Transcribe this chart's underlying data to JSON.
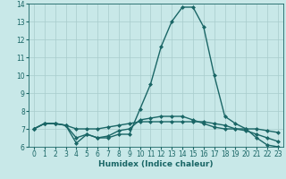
{
  "title": "",
  "xlabel": "Humidex (Indice chaleur)",
  "x": [
    0,
    1,
    2,
    3,
    4,
    5,
    6,
    7,
    8,
    9,
    10,
    11,
    12,
    13,
    14,
    15,
    16,
    17,
    18,
    19,
    20,
    21,
    22,
    23
  ],
  "line1": [
    7.0,
    7.3,
    7.3,
    7.2,
    6.2,
    6.7,
    6.5,
    6.5,
    6.7,
    6.7,
    8.1,
    9.5,
    11.6,
    13.0,
    13.8,
    13.8,
    12.7,
    10.0,
    7.7,
    7.3,
    7.0,
    6.5,
    6.1,
    6.0
  ],
  "line2": [
    7.0,
    7.3,
    7.3,
    7.2,
    7.0,
    7.0,
    7.0,
    7.1,
    7.2,
    7.3,
    7.4,
    7.4,
    7.4,
    7.4,
    7.4,
    7.4,
    7.4,
    7.3,
    7.2,
    7.0,
    7.0,
    7.0,
    6.9,
    6.8
  ],
  "line3": [
    7.0,
    7.3,
    7.3,
    7.2,
    6.5,
    6.7,
    6.5,
    6.6,
    6.9,
    7.0,
    7.5,
    7.6,
    7.7,
    7.7,
    7.7,
    7.5,
    7.3,
    7.1,
    7.0,
    7.0,
    6.9,
    6.7,
    6.5,
    6.3
  ],
  "ylim": [
    6,
    14
  ],
  "xlim": [
    -0.5,
    23.5
  ],
  "yticks": [
    6,
    7,
    8,
    9,
    10,
    11,
    12,
    13,
    14
  ],
  "xticks": [
    0,
    1,
    2,
    3,
    4,
    5,
    6,
    7,
    8,
    9,
    10,
    11,
    12,
    13,
    14,
    15,
    16,
    17,
    18,
    19,
    20,
    21,
    22,
    23
  ],
  "bg_color": "#c8e8e8",
  "grid_color": "#a8cccc",
  "line_color": "#1a6666",
  "marker": "D",
  "marker_size": 2.0,
  "line_width": 1.0,
  "xlabel_fontsize": 6.5,
  "tick_fontsize": 5.5
}
